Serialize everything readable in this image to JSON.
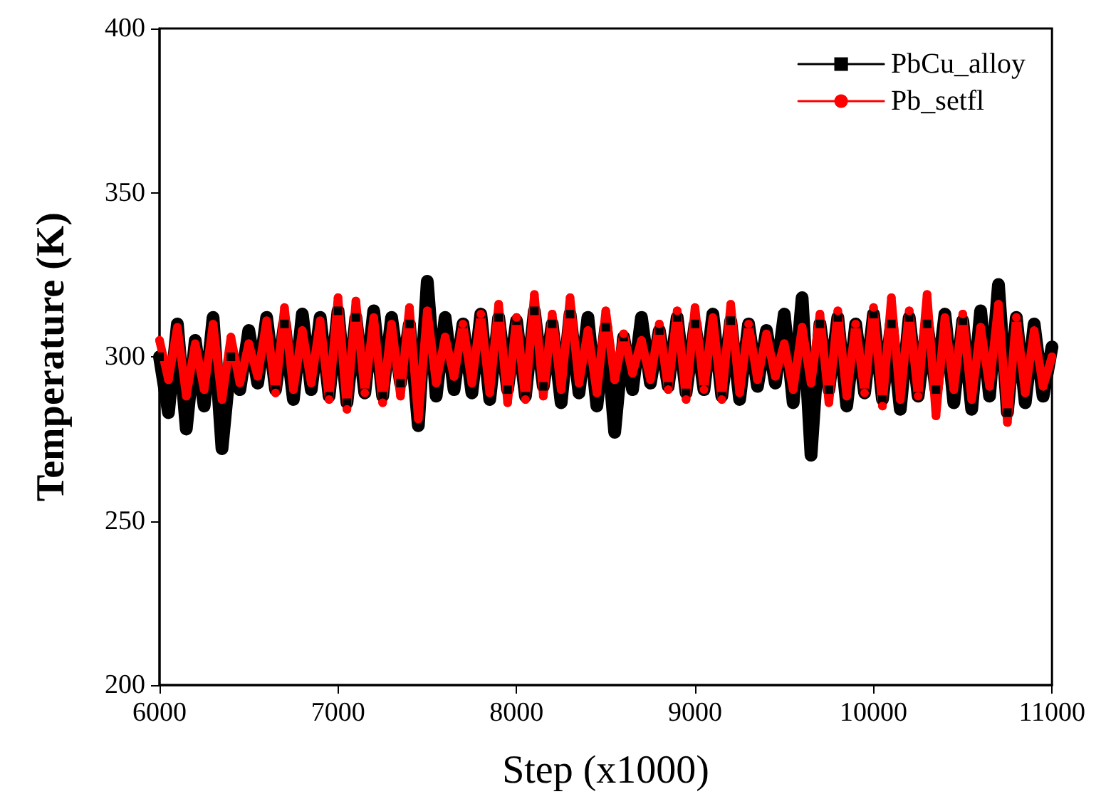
{
  "chart_data": {
    "type": "line",
    "xlabel": "Step (x1000)",
    "ylabel": "Temperature (K)",
    "xlim": [
      6000,
      11000
    ],
    "xticks": [
      6000,
      7000,
      8000,
      9000,
      10000,
      11000
    ],
    "ylim": [
      200,
      400
    ],
    "yticks": [
      200,
      250,
      300,
      350,
      400
    ],
    "grid": false,
    "legend": "top right",
    "line_style": "solid",
    "x": [
      6000,
      6050,
      6100,
      6150,
      6200,
      6250,
      6300,
      6350,
      6400,
      6450,
      6500,
      6550,
      6600,
      6650,
      6700,
      6750,
      6800,
      6850,
      6900,
      6950,
      7000,
      7050,
      7100,
      7150,
      7200,
      7250,
      7300,
      7350,
      7400,
      7450,
      7500,
      7550,
      7600,
      7650,
      7700,
      7750,
      7800,
      7850,
      7900,
      7950,
      8000,
      8050,
      8100,
      8150,
      8200,
      8250,
      8300,
      8350,
      8400,
      8450,
      8500,
      8550,
      8600,
      8650,
      8700,
      8750,
      8800,
      8850,
      8900,
      8950,
      9000,
      9050,
      9100,
      9150,
      9200,
      9250,
      9300,
      9350,
      9400,
      9450,
      9500,
      9550,
      9600,
      9650,
      9700,
      9750,
      9800,
      9850,
      9900,
      9950,
      10000,
      10050,
      10100,
      10150,
      10200,
      10250,
      10300,
      10350,
      10400,
      10450,
      10500,
      10550,
      10600,
      10650,
      10700,
      10750,
      10800,
      10850,
      10900,
      10950,
      11000
    ],
    "series": [
      {
        "name": "PbCu_alloy",
        "color": "#000000",
        "marker": "square",
        "values": [
          300,
          283,
          310,
          278,
          305,
          285,
          312,
          272,
          300,
          290,
          308,
          292,
          312,
          290,
          310,
          287,
          313,
          290,
          312,
          288,
          314,
          286,
          312,
          289,
          314,
          288,
          312,
          292,
          310,
          279,
          323,
          288,
          312,
          290,
          310,
          289,
          313,
          287,
          312,
          290,
          311,
          288,
          314,
          291,
          310,
          286,
          313,
          289,
          312,
          285,
          309,
          277,
          306,
          290,
          312,
          292,
          308,
          291,
          312,
          289,
          310,
          290,
          313,
          288,
          311,
          287,
          310,
          291,
          308,
          292,
          313,
          286,
          318,
          270,
          310,
          290,
          312,
          285,
          310,
          289,
          313,
          287,
          310,
          284,
          312,
          288,
          310,
          290,
          313,
          286,
          311,
          284,
          314,
          288,
          322,
          283,
          312,
          286,
          310,
          288,
          303
        ]
      },
      {
        "name": "Pb_setfl",
        "color": "#ff0000",
        "marker": "circle",
        "values": [
          305,
          293,
          309,
          288,
          304,
          290,
          310,
          287,
          306,
          292,
          304,
          294,
          311,
          289,
          315,
          290,
          308,
          292,
          311,
          287,
          318,
          284,
          317,
          289,
          312,
          286,
          310,
          288,
          315,
          281,
          314,
          292,
          306,
          294,
          310,
          292,
          313,
          289,
          316,
          286,
          312,
          287,
          319,
          288,
          313,
          290,
          318,
          292,
          308,
          289,
          314,
          293,
          307,
          295,
          305,
          293,
          310,
          290,
          314,
          287,
          315,
          290,
          312,
          287,
          316,
          289,
          310,
          293,
          307,
          294,
          304,
          290,
          309,
          292,
          313,
          286,
          314,
          288,
          310,
          289,
          315,
          285,
          318,
          287,
          314,
          288,
          319,
          282,
          312,
          290,
          313,
          287,
          309,
          291,
          316,
          280,
          312,
          289,
          308,
          291,
          300
        ]
      }
    ]
  }
}
